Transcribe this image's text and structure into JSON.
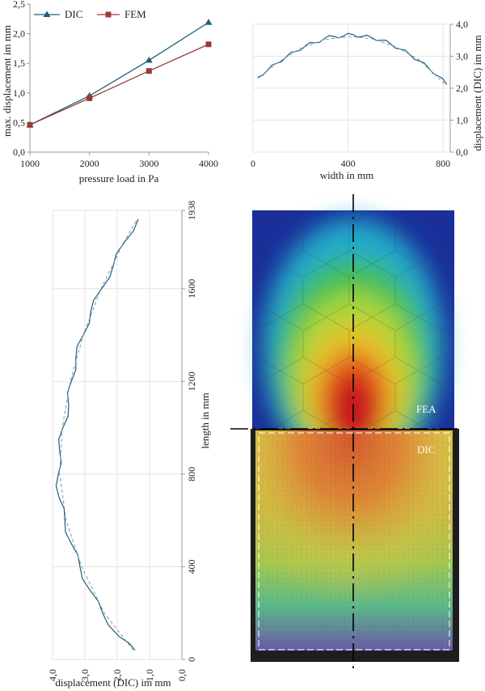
{
  "chart_data": [
    {
      "type": "line",
      "xlabel": "pressure load in Pa",
      "ylabel": "max. displacement im mm",
      "x": [
        1000,
        2000,
        3000,
        4000
      ],
      "x_ticks": [
        "1000",
        "2000",
        "3000",
        "4000"
      ],
      "y_ticks": [
        "0,0",
        "0,5",
        "1,0",
        "1,5",
        "2,0",
        "2,5"
      ],
      "xlim": [
        1000,
        4000
      ],
      "ylim": [
        0,
        2.5
      ],
      "legend_position": "top-left",
      "series": [
        {
          "name": "DIC",
          "values": [
            0.46,
            0.95,
            1.55,
            2.19
          ],
          "color": "#1f5f7a",
          "marker": "triangle"
        },
        {
          "name": "FEM",
          "values": [
            0.46,
            0.91,
            1.37,
            1.82
          ],
          "color": "#9a3b3b",
          "marker": "square"
        }
      ]
    },
    {
      "type": "line",
      "xlabel": "width in mm",
      "ylabel": "displacement (DIC) im mm",
      "x_ticks": [
        "0",
        "400",
        "800"
      ],
      "y_ticks": [
        "0,0",
        "1,0",
        "2,0",
        "3,0",
        "4,0"
      ],
      "xlim": [
        0,
        830
      ],
      "ylim": [
        0,
        4.0
      ],
      "grid": true,
      "series": [
        {
          "style": "solid",
          "color": "#1f5f7a",
          "x": [
            20,
            60,
            100,
            140,
            180,
            220,
            260,
            300,
            340,
            380,
            420,
            460,
            500,
            540,
            580,
            620,
            660,
            700,
            740,
            780,
            815
          ],
          "y": [
            2.35,
            2.55,
            2.78,
            2.98,
            3.15,
            3.32,
            3.42,
            3.55,
            3.62,
            3.63,
            3.68,
            3.62,
            3.58,
            3.5,
            3.38,
            3.22,
            3.05,
            2.85,
            2.62,
            2.38,
            2.12
          ]
        },
        {
          "style": "dashed",
          "color": "#7a9aa8",
          "x": [
            20,
            100,
            200,
            300,
            410,
            500,
            600,
            700,
            815
          ],
          "y": [
            2.3,
            2.78,
            3.25,
            3.52,
            3.62,
            3.55,
            3.3,
            2.88,
            2.08
          ]
        }
      ]
    },
    {
      "type": "line",
      "xlabel": "displacement (DIC) im mm",
      "ylabel": "length in mm",
      "x_ticks": [
        "4,0",
        "3,0",
        "2,0",
        "1,0",
        "0,0"
      ],
      "y_ticks": [
        "0",
        "400",
        "800",
        "1200",
        "1600",
        "1938"
      ],
      "xlim": [
        4.0,
        0.0
      ],
      "ylim": [
        0,
        1938
      ],
      "grid": true,
      "series": [
        {
          "style": "solid",
          "color": "#1f5f7a",
          "length": [
            40,
            100,
            200,
            300,
            400,
            500,
            600,
            700,
            800,
            900,
            1000,
            1100,
            1200,
            1300,
            1400,
            1500,
            1600,
            1700,
            1800,
            1900
          ],
          "displacement": [
            1.45,
            1.95,
            2.45,
            2.85,
            3.15,
            3.42,
            3.62,
            3.8,
            3.82,
            3.78,
            3.68,
            3.5,
            3.42,
            3.28,
            3.05,
            2.82,
            2.48,
            2.12,
            1.78,
            1.35
          ]
        },
        {
          "style": "dashed",
          "color": "#7a9aa8",
          "length": [
            40,
            200,
            400,
            600,
            800,
            1000,
            1200,
            1400,
            1600,
            1800,
            1900
          ],
          "displacement": [
            1.5,
            2.4,
            3.1,
            3.58,
            3.78,
            3.7,
            3.45,
            3.05,
            2.5,
            1.8,
            1.38
          ]
        }
      ]
    }
  ],
  "overlay": {
    "label_fea": "FEA",
    "label_dic": "DIC"
  }
}
